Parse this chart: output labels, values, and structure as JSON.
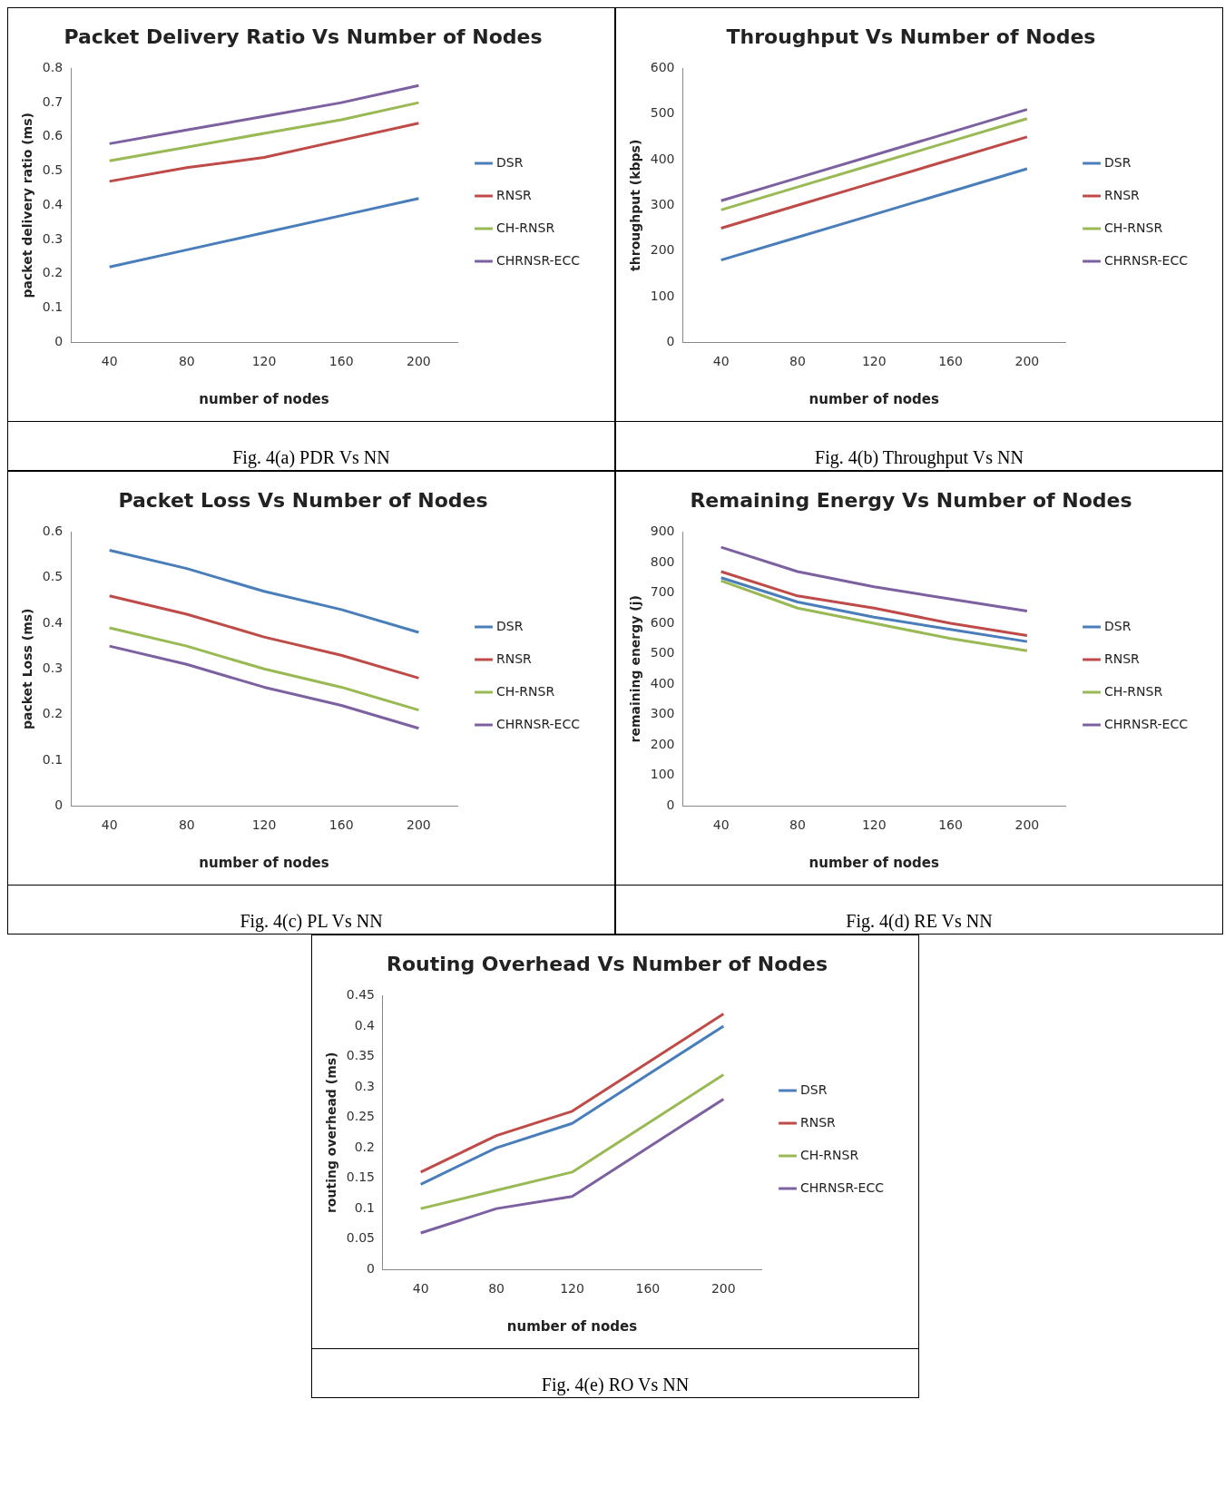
{
  "chart_data": [
    {
      "type": "line",
      "title": "Packet Delivery Ratio Vs Number of Nodes",
      "xlabel": "number of nodes",
      "ylabel": "packet delivery ratio (ms)",
      "categories": [
        "40",
        "80",
        "120",
        "160",
        "200"
      ],
      "ylim": [
        0,
        0.8
      ],
      "yticks": [
        0,
        0.1,
        0.2,
        0.3,
        0.4,
        0.5,
        0.6,
        0.7,
        0.8
      ],
      "grid": false,
      "legend": "right",
      "marker": "none",
      "annotations": [
        "Fig. 4(a) PDR Vs NN"
      ],
      "series": [
        {
          "name": "DSR",
          "color": "#4a7ebb",
          "values": [
            0.22,
            0.27,
            0.32,
            0.37,
            0.42
          ]
        },
        {
          "name": "RNSR",
          "color": "#be4b48",
          "values": [
            0.47,
            0.51,
            0.54,
            0.59,
            0.64
          ]
        },
        {
          "name": "CH-RNSR",
          "color": "#98b954",
          "values": [
            0.53,
            0.57,
            0.61,
            0.65,
            0.7
          ]
        },
        {
          "name": "CHRNSR-ECC",
          "color": "#7d60a0",
          "values": [
            0.58,
            0.62,
            0.66,
            0.7,
            0.75
          ]
        }
      ]
    },
    {
      "type": "line",
      "title": "Throughput Vs Number of Nodes",
      "xlabel": "number of nodes",
      "ylabel": "throughput (kbps)",
      "categories": [
        "40",
        "80",
        "120",
        "160",
        "200"
      ],
      "ylim": [
        0,
        600
      ],
      "yticks": [
        0,
        100,
        200,
        300,
        400,
        500,
        600
      ],
      "grid": false,
      "legend": "right",
      "marker": "none",
      "annotations": [
        "Fig. 4(b) Throughput Vs NN"
      ],
      "series": [
        {
          "name": "DSR",
          "color": "#4a7ebb",
          "values": [
            180,
            230,
            280,
            330,
            380
          ]
        },
        {
          "name": "RNSR",
          "color": "#be4b48",
          "values": [
            250,
            300,
            350,
            400,
            450
          ]
        },
        {
          "name": "CH-RNSR",
          "color": "#98b954",
          "values": [
            290,
            340,
            390,
            440,
            490
          ]
        },
        {
          "name": "CHRNSR-ECC",
          "color": "#7d60a0",
          "values": [
            310,
            360,
            410,
            460,
            510
          ]
        }
      ]
    },
    {
      "type": "line",
      "title": "Packet Loss Vs Number of Nodes",
      "xlabel": "number of nodes",
      "ylabel": "packet Loss (ms)",
      "categories": [
        "40",
        "80",
        "120",
        "160",
        "200"
      ],
      "ylim": [
        0,
        0.6
      ],
      "yticks": [
        0,
        0.1,
        0.2,
        0.3,
        0.4,
        0.5,
        0.6
      ],
      "grid": false,
      "legend": "right",
      "marker": "none",
      "annotations": [
        "Fig. 4(c) PL Vs NN"
      ],
      "series": [
        {
          "name": "DSR",
          "color": "#4a7ebb",
          "values": [
            0.56,
            0.52,
            0.47,
            0.43,
            0.38
          ]
        },
        {
          "name": "RNSR",
          "color": "#be4b48",
          "values": [
            0.46,
            0.42,
            0.37,
            0.33,
            0.28
          ]
        },
        {
          "name": "CH-RNSR",
          "color": "#98b954",
          "values": [
            0.39,
            0.35,
            0.3,
            0.26,
            0.21
          ]
        },
        {
          "name": "CHRNSR-ECC",
          "color": "#7d60a0",
          "values": [
            0.35,
            0.31,
            0.26,
            0.22,
            0.17
          ]
        }
      ]
    },
    {
      "type": "line",
      "title": "Remaining Energy Vs Number of Nodes",
      "xlabel": "number of nodes",
      "ylabel": "remaining energy (j)",
      "categories": [
        "40",
        "80",
        "120",
        "160",
        "200"
      ],
      "ylim": [
        0,
        900
      ],
      "yticks": [
        0,
        100,
        200,
        300,
        400,
        500,
        600,
        700,
        800,
        900
      ],
      "grid": false,
      "legend": "right",
      "marker": "none",
      "annotations": [
        "Fig. 4(d) RE Vs NN"
      ],
      "series": [
        {
          "name": "DSR",
          "color": "#4a7ebb",
          "values": [
            750,
            670,
            620,
            580,
            540
          ]
        },
        {
          "name": "RNSR",
          "color": "#be4b48",
          "values": [
            770,
            690,
            650,
            600,
            560
          ]
        },
        {
          "name": "CH-RNSR",
          "color": "#98b954",
          "values": [
            740,
            650,
            600,
            550,
            510
          ]
        },
        {
          "name": "CHRNSR-ECC",
          "color": "#7d60a0",
          "values": [
            850,
            770,
            720,
            680,
            640
          ]
        }
      ]
    },
    {
      "type": "line",
      "title": "Routing Overhead Vs Number of Nodes",
      "xlabel": "number of nodes",
      "ylabel": "routing overhead (ms)",
      "categories": [
        "40",
        "80",
        "120",
        "160",
        "200"
      ],
      "ylim": [
        0,
        0.45
      ],
      "yticks": [
        0,
        0.05,
        0.1,
        0.15,
        0.2,
        0.25,
        0.3,
        0.35,
        0.4,
        0.45
      ],
      "grid": false,
      "legend": "right",
      "marker": "none",
      "annotations": [
        "Fig. 4(e) RO Vs NN"
      ],
      "series": [
        {
          "name": "DSR",
          "color": "#4a7ebb",
          "values": [
            0.14,
            0.2,
            0.24,
            0.32,
            0.4
          ]
        },
        {
          "name": "RNSR",
          "color": "#be4b48",
          "values": [
            0.16,
            0.22,
            0.26,
            0.34,
            0.42
          ]
        },
        {
          "name": "CH-RNSR",
          "color": "#98b954",
          "values": [
            0.1,
            0.13,
            0.16,
            0.24,
            0.32
          ]
        },
        {
          "name": "CHRNSR-ECC",
          "color": "#7d60a0",
          "values": [
            0.06,
            0.1,
            0.12,
            0.2,
            0.28
          ]
        }
      ]
    }
  ]
}
